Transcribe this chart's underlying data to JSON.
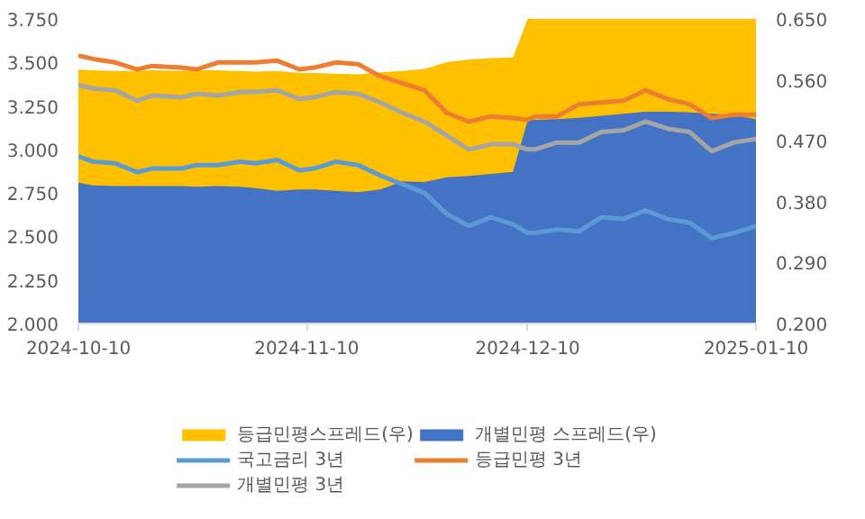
{
  "chart_data": {
    "type": "line",
    "x": [
      "2024-10-10",
      "2024-10-12",
      "2024-10-15",
      "2024-10-18",
      "2024-10-20",
      "2024-10-24",
      "2024-10-26",
      "2024-10-29",
      "2024-11-01",
      "2024-11-03",
      "2024-11-06",
      "2024-11-09",
      "2024-11-11",
      "2024-11-14",
      "2024-11-17",
      "2024-11-20",
      "2024-11-23",
      "2024-11-26",
      "2024-11-29",
      "2024-12-02",
      "2024-12-05",
      "2024-12-08",
      "2024-12-10",
      "2024-12-11",
      "2024-12-14",
      "2024-12-17",
      "2024-12-20",
      "2024-12-23",
      "2024-12-26",
      "2024-12-29",
      "2025-01-01",
      "2025-01-04",
      "2025-01-07",
      "2025-01-10"
    ],
    "series": [
      {
        "name": "등급민평스프레드(우)",
        "type": "area",
        "axis": "y2",
        "color": "#ffc000",
        "values": [
          0.575,
          0.574,
          0.573,
          0.573,
          0.574,
          0.573,
          0.574,
          0.574,
          0.573,
          0.572,
          0.573,
          0.57,
          0.57,
          0.569,
          0.568,
          0.571,
          0.573,
          0.576,
          0.586,
          0.59,
          0.592,
          0.593,
          0.65,
          0.65,
          0.65,
          0.65,
          0.65,
          0.65,
          0.65,
          0.65,
          0.65,
          0.65,
          0.65,
          0.65
        ]
      },
      {
        "name": "개별민평 스프레드(우)",
        "type": "area",
        "axis": "y2",
        "color": "#4472c4",
        "values": [
          0.408,
          0.404,
          0.403,
          0.403,
          0.403,
          0.403,
          0.402,
          0.403,
          0.402,
          0.4,
          0.396,
          0.398,
          0.398,
          0.396,
          0.394,
          0.398,
          0.41,
          0.409,
          0.416,
          0.418,
          0.421,
          0.424,
          0.5,
          0.501,
          0.502,
          0.504,
          0.507,
          0.51,
          0.513,
          0.513,
          0.512,
          0.51,
          0.508,
          0.502
        ]
      },
      {
        "name": "국고금리 3년",
        "color": "#5b9bd5",
        "values": [
          2.96,
          2.93,
          2.92,
          2.87,
          2.89,
          2.89,
          2.91,
          2.91,
          2.93,
          2.92,
          2.94,
          2.88,
          2.89,
          2.93,
          2.91,
          2.85,
          2.8,
          2.75,
          2.63,
          2.56,
          2.61,
          2.57,
          2.52,
          2.52,
          2.54,
          2.53,
          2.61,
          2.6,
          2.65,
          2.6,
          2.58,
          2.49,
          2.52,
          2.56
        ]
      },
      {
        "name": "등급민평 3년",
        "color": "#ed7d31",
        "values": [
          3.54,
          3.52,
          3.5,
          3.46,
          3.48,
          3.47,
          3.46,
          3.5,
          3.5,
          3.5,
          3.51,
          3.46,
          3.47,
          3.5,
          3.49,
          3.42,
          3.38,
          3.34,
          3.21,
          3.16,
          3.19,
          3.18,
          3.17,
          3.19,
          3.19,
          3.26,
          3.27,
          3.28,
          3.34,
          3.29,
          3.26,
          3.18,
          3.2,
          3.2
        ]
      },
      {
        "name": "개별민평 3년",
        "color": "#a5a5a5",
        "values": [
          3.37,
          3.35,
          3.34,
          3.28,
          3.31,
          3.3,
          3.32,
          3.31,
          3.33,
          3.33,
          3.34,
          3.29,
          3.3,
          3.33,
          3.32,
          3.27,
          3.21,
          3.16,
          3.08,
          3.0,
          3.03,
          3.03,
          3.0,
          3.0,
          3.04,
          3.04,
          3.1,
          3.11,
          3.16,
          3.12,
          3.1,
          2.99,
          3.04,
          3.06
        ]
      }
    ],
    "xlim": [
      "2024-10-10",
      "2025-01-10"
    ],
    "xticks": [
      "2024-10-10",
      "2024-11-10",
      "2024-12-10",
      "2025-01-10"
    ],
    "ylim": [
      2.0,
      3.75
    ],
    "yticks": [
      {
        "value": 2.0,
        "label": "2.000"
      },
      {
        "value": 2.25,
        "label": "2.250"
      },
      {
        "value": 2.5,
        "label": "2.500"
      },
      {
        "value": 2.75,
        "label": "2.750"
      },
      {
        "value": 3.0,
        "label": "3.000"
      },
      {
        "value": 3.25,
        "label": "3.250"
      },
      {
        "value": 3.5,
        "label": "3.500"
      },
      {
        "value": 3.75,
        "label": "3.750"
      }
    ],
    "y2lim": [
      0.2,
      0.65
    ],
    "y2ticks": [
      {
        "value": 0.2,
        "label": "0.200"
      },
      {
        "value": 0.29,
        "label": "0.290"
      },
      {
        "value": 0.38,
        "label": "0.380"
      },
      {
        "value": 0.47,
        "label": "0.470"
      },
      {
        "value": 0.56,
        "label": "0.560"
      },
      {
        "value": 0.65,
        "label": "0.650"
      }
    ],
    "grid": false,
    "legend": "bottom",
    "marker": "none",
    "line_style": "solid"
  }
}
